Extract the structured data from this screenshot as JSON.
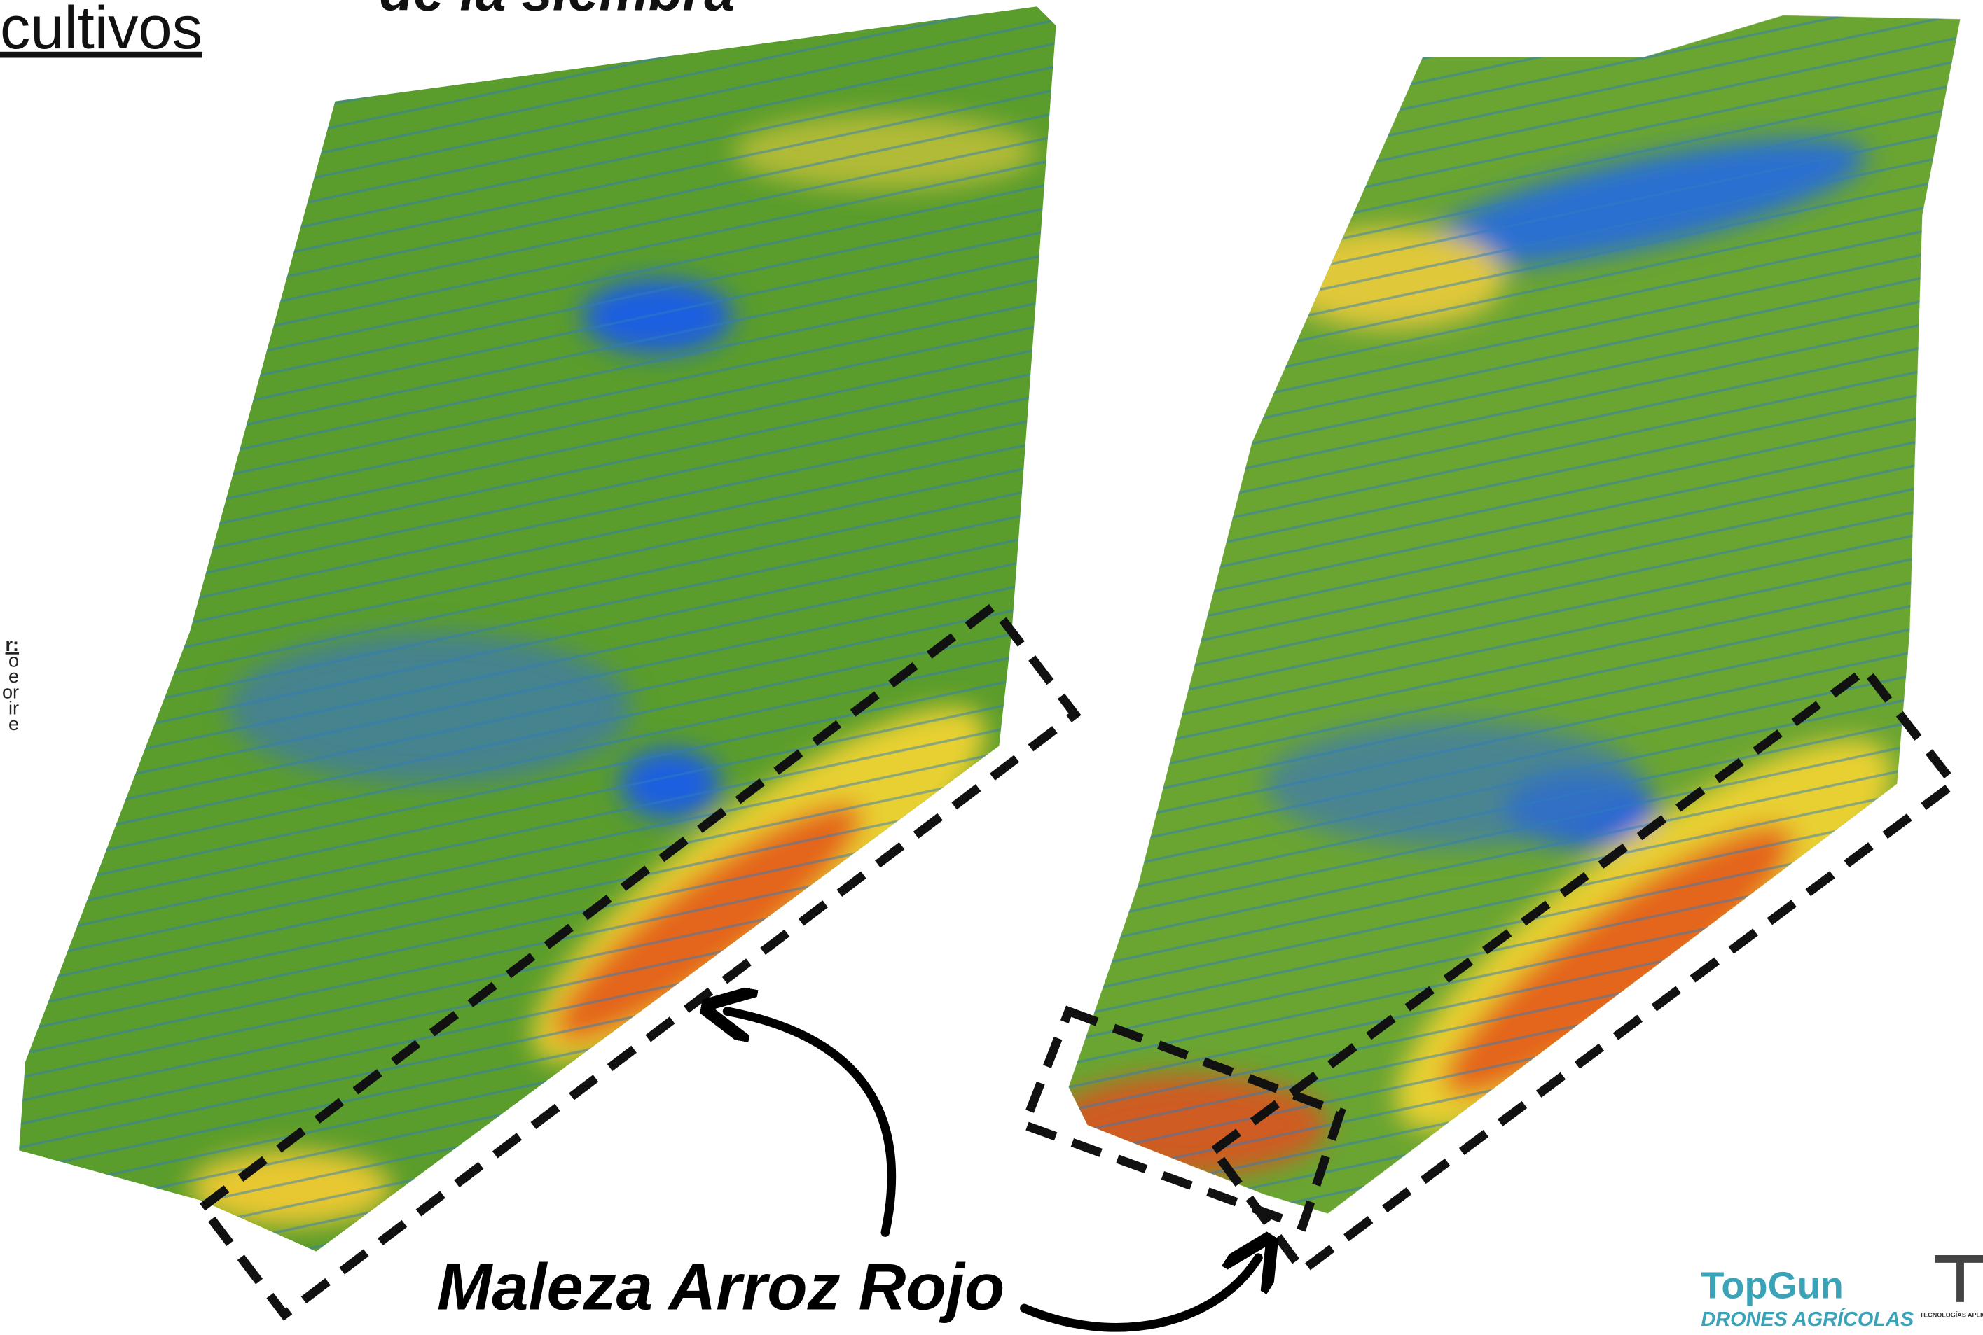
{
  "header": {
    "title_fragment": "cultivos",
    "subtitle_fragment": "de la siembra"
  },
  "side_text": [
    "r:",
    "o",
    "e",
    "or",
    "ir",
    "e"
  ],
  "annotation": "Maleza Arroz Rojo",
  "logos": {
    "topgun": "TopGun",
    "topgun_tagline": "DRONES AGRÍCOLAS",
    "tecnologias": "TECNOLOGÍAS APLIC"
  }
}
